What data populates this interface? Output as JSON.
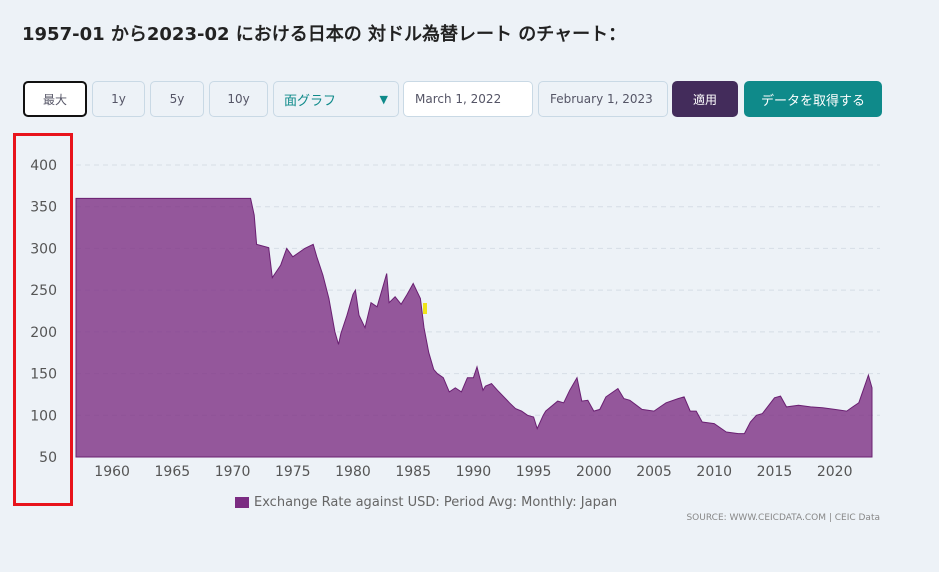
{
  "title": "1957-01 から2023-02 における日本の 対ドル為替レート のチャート：",
  "toolbar": {
    "max": "最大",
    "y1": "1y",
    "y5": "5y",
    "y10": "10y",
    "chart_type": "面グラフ",
    "start_date": "March 1, 2022",
    "end_date": "February 1, 2023",
    "apply": "適用",
    "get_data": "データを取得する"
  },
  "colors": {
    "area": "#7b2c82",
    "apply": "#432c5b",
    "get_data": "#0f8a8a"
  },
  "chart_data": {
    "type": "area",
    "title": "",
    "legend": "Exchange Rate against USD: Period Avg: Monthly: Japan",
    "legend_placement": "bottom-center",
    "source": "SOURCE: WWW.CEICDATA.COM | CEIC Data",
    "ylim": [
      50,
      400
    ],
    "xlim": [
      1957,
      2023.1
    ],
    "yticks": [
      50,
      100,
      150,
      200,
      250,
      300,
      350,
      400
    ],
    "xticks": [
      1960,
      1965,
      1970,
      1975,
      1980,
      1985,
      1990,
      1995,
      2000,
      2005,
      2010,
      2015,
      2020
    ],
    "x": [
      1957,
      1971.5,
      1971.8,
      1972,
      1973,
      1973.3,
      1974,
      1974.5,
      1975,
      1976,
      1976.7,
      1977,
      1977.5,
      1978,
      1978.5,
      1978.8,
      1979,
      1979.5,
      1980,
      1980.2,
      1980.5,
      1981,
      1981.5,
      1982,
      1982.8,
      1983,
      1983.5,
      1984,
      1984.5,
      1985,
      1985.6,
      1985.9,
      1986.3,
      1986.7,
      1987,
      1987.5,
      1988,
      1988.5,
      1989,
      1989.5,
      1990,
      1990.3,
      1990.8,
      1991,
      1991.5,
      1992,
      1993,
      1993.5,
      1994,
      1994.5,
      1995,
      1995.3,
      1995.8,
      1996,
      1997,
      1997.5,
      1998,
      1998.6,
      1999,
      1999.5,
      2000,
      2000.5,
      2001,
      2002,
      2002.5,
      2003,
      2004,
      2005,
      2005.5,
      2006,
      2007,
      2007.5,
      2008,
      2008.5,
      2009,
      2010,
      2011,
      2012,
      2012.5,
      2013,
      2013.5,
      2014,
      2015,
      2015.5,
      2016,
      2017,
      2018,
      2019,
      2020,
      2021,
      2021.5,
      2022,
      2022.8,
      2023.1
    ],
    "values": [
      360,
      360,
      340,
      305,
      301,
      265,
      280,
      300,
      290,
      300,
      305,
      290,
      268,
      240,
      200,
      185,
      198,
      220,
      245,
      250,
      220,
      205,
      235,
      230,
      270,
      235,
      242,
      233,
      245,
      258,
      240,
      205,
      175,
      155,
      150,
      145,
      128,
      133,
      128,
      145,
      145,
      158,
      130,
      135,
      138,
      130,
      115,
      108,
      105,
      100,
      98,
      84,
      100,
      105,
      117,
      115,
      130,
      145,
      117,
      118,
      105,
      107,
      122,
      132,
      120,
      118,
      107,
      105,
      110,
      115,
      120,
      122,
      105,
      105,
      92,
      90,
      80,
      78,
      78,
      92,
      100,
      102,
      121,
      123,
      110,
      112,
      110,
      109,
      107,
      105,
      110,
      115,
      148,
      133
    ]
  }
}
